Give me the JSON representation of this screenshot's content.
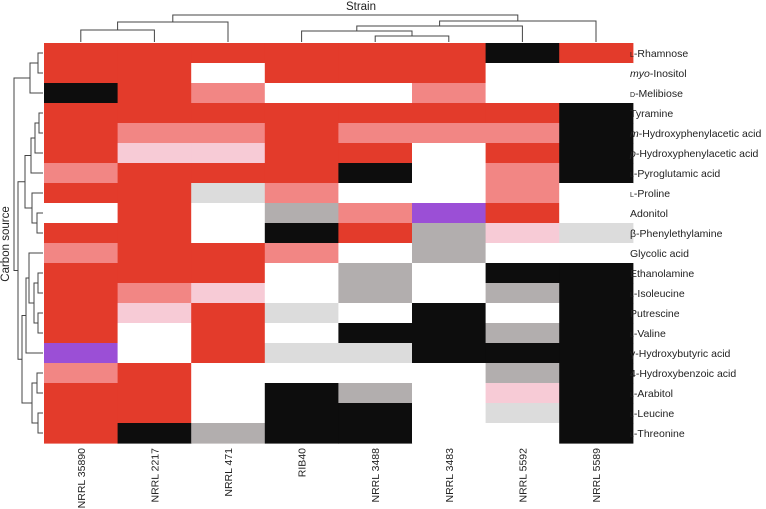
{
  "chart_data": {
    "type": "heatmap",
    "xlabel": "Strain",
    "ylabel": "Carbon source",
    "columns": [
      "NRRL 35890",
      "NRRL 2217",
      "NRRL 471",
      "RIB40",
      "NRRL 3488",
      "NRRL 3483",
      "NRRL 5592",
      "NRRL 5589"
    ],
    "rows": [
      {
        "pre": "l",
        "name": "-Rhamnose"
      },
      {
        "pre": "",
        "name": "myo",
        "post": "-Inositol"
      },
      {
        "pre": "d",
        "name": "-Melibiose"
      },
      {
        "pre": "",
        "name": "Tyramine"
      },
      {
        "pre": "",
        "name": "m",
        "post": "-Hydroxyphenylacetic acid"
      },
      {
        "pre": "",
        "name": "p",
        "post": "-Hydroxyphenylacetic acid"
      },
      {
        "pre": "l",
        "name": "-Pyroglutamic acid"
      },
      {
        "pre": "l",
        "name": "-Proline"
      },
      {
        "pre": "",
        "name": "Adonitol"
      },
      {
        "pre": "",
        "name": "β-Phenylethylamine"
      },
      {
        "pre": "",
        "name": "Glycolic acid"
      },
      {
        "pre": "",
        "name": "Ethanolamine"
      },
      {
        "pre": "l",
        "name": "-Isoleucine"
      },
      {
        "pre": "",
        "name": "Putrescine"
      },
      {
        "pre": "l",
        "name": "-Valine"
      },
      {
        "pre": "",
        "name": "γ-Hydroxybutyric acid"
      },
      {
        "pre": "",
        "name": "4-Hydroxybenzoic acid"
      },
      {
        "pre": "l",
        "name": "-Arabitol"
      },
      {
        "pre": "l",
        "name": "-Leucine"
      },
      {
        "pre": "l",
        "name": "-Threonine"
      }
    ],
    "italic_rows": [
      1,
      4,
      5
    ],
    "smallcaps_rows": [
      0,
      2,
      6,
      7,
      12,
      14,
      17,
      18,
      19
    ],
    "cells": [
      [
        "R",
        "R",
        "R",
        "R",
        "R",
        "R",
        "K",
        "R"
      ],
      [
        "R",
        "R",
        "W",
        "R",
        "R",
        "R",
        "W",
        "W"
      ],
      [
        "K",
        "R",
        "P",
        "W",
        "W",
        "P",
        "W",
        "W"
      ],
      [
        "R",
        "R",
        "R",
        "R",
        "R",
        "R",
        "R",
        "K"
      ],
      [
        "R",
        "P",
        "P",
        "R",
        "P",
        "P",
        "P",
        "K"
      ],
      [
        "R",
        "L",
        "L",
        "R",
        "R",
        "W",
        "R",
        "K"
      ],
      [
        "P",
        "R",
        "R",
        "R",
        "K",
        "W",
        "P",
        "K"
      ],
      [
        "R",
        "R",
        "G",
        "P",
        "W",
        "W",
        "P",
        "W"
      ],
      [
        "W",
        "R",
        "W",
        "D",
        "P",
        "V",
        "R",
        "W"
      ],
      [
        "R",
        "R",
        "W",
        "K",
        "R",
        "D",
        "L",
        "G"
      ],
      [
        "P",
        "R",
        "R",
        "P",
        "W",
        "D",
        "W",
        "W"
      ],
      [
        "R",
        "R",
        "R",
        "W",
        "D",
        "W",
        "K",
        "K"
      ],
      [
        "R",
        "P",
        "L",
        "W",
        "D",
        "W",
        "D",
        "K"
      ],
      [
        "R",
        "L",
        "R",
        "G",
        "W",
        "K",
        "W",
        "K"
      ],
      [
        "R",
        "W",
        "R",
        "W",
        "K",
        "K",
        "D",
        "K"
      ],
      [
        "V",
        "W",
        "R",
        "G",
        "G",
        "K",
        "K",
        "K"
      ],
      [
        "P",
        "R",
        "W",
        "W",
        "W",
        "W",
        "D",
        "K"
      ],
      [
        "R",
        "R",
        "W",
        "K",
        "D",
        "W",
        "L",
        "K"
      ],
      [
        "R",
        "R",
        "W",
        "K",
        "K",
        "W",
        "G",
        "K"
      ],
      [
        "R",
        "K",
        "D",
        "K",
        "K",
        "W",
        "W",
        "K"
      ]
    ],
    "color_map": {
      "R": "#e33b2b",
      "P": "#f28684",
      "L": "#f7cbd6",
      "W": "#ffffff",
      "G": "#dcdcdc",
      "D": "#b2aeae",
      "K": "#0d0d0d",
      "V": "#9b4fd6"
    },
    "legend": "none",
    "grid": false
  }
}
